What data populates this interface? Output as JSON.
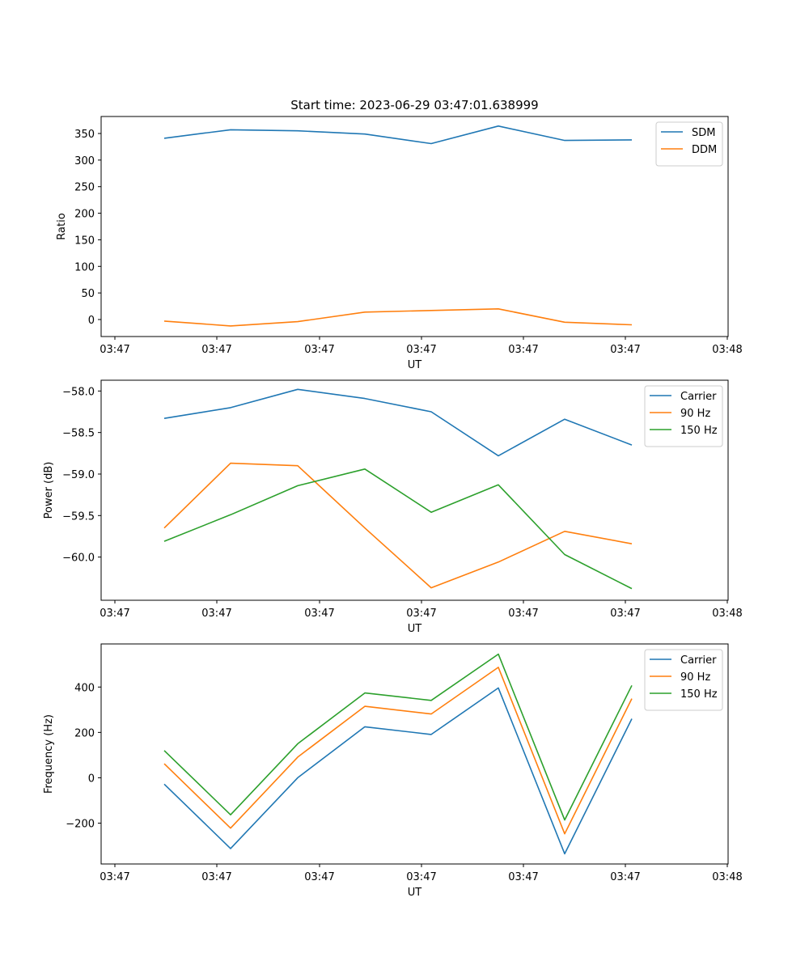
{
  "figure": {
    "title": "Start time: 2023-06-29 03:47:01.638999"
  },
  "colors": {
    "blue": "#1f77b4",
    "orange": "#ff7f0e",
    "green": "#2ca02c"
  },
  "chart_data": [
    {
      "type": "line",
      "title": "Start time: 2023-06-29 03:47:01.638999",
      "xlabel": "UT",
      "ylabel": "Ratio",
      "x_ticks": [
        "03:47",
        "03:47",
        "03:47",
        "03:47",
        "03:47",
        "03:47",
        "03:48"
      ],
      "ylim": [
        -32,
        382
      ],
      "y_ticks": [
        0,
        50,
        100,
        150,
        200,
        250,
        300,
        350
      ],
      "y_tick_labels": [
        "0",
        "50",
        "100",
        "150",
        "200",
        "250",
        "300",
        "350"
      ],
      "legend": "top-right",
      "series": [
        {
          "name": "SDM",
          "color": "#1f77b4",
          "values": [
            341,
            357,
            355,
            349,
            331,
            364,
            337,
            338
          ]
        },
        {
          "name": "DDM",
          "color": "#ff7f0e",
          "values": [
            -3,
            -12,
            -4,
            14,
            17,
            20,
            -5,
            -10
          ]
        }
      ]
    },
    {
      "type": "line",
      "title": "",
      "xlabel": "UT",
      "ylabel": "Power (dB)",
      "x_ticks": [
        "03:47",
        "03:47",
        "03:47",
        "03:47",
        "03:47",
        "03:47",
        "03:48"
      ],
      "ylim": [
        -60.52,
        -57.87
      ],
      "y_ticks": [
        -60.0,
        -59.5,
        -59.0,
        -58.5,
        -58.0
      ],
      "y_tick_labels": [
        "−60.0",
        "−59.5",
        "−59.0",
        "−58.5",
        "−58.0"
      ],
      "legend": "top-right",
      "series": [
        {
          "name": "Carrier",
          "color": "#1f77b4",
          "values": [
            -58.33,
            -58.2,
            -57.98,
            -58.09,
            -58.25,
            -58.78,
            -58.34,
            -58.65
          ]
        },
        {
          "name": "90 Hz",
          "color": "#ff7f0e",
          "values": [
            -59.65,
            -58.87,
            -58.9,
            -59.65,
            -60.37,
            -60.06,
            -59.69,
            -59.84
          ]
        },
        {
          "name": "150 Hz",
          "color": "#2ca02c",
          "values": [
            -59.81,
            -59.49,
            -59.14,
            -58.94,
            -59.46,
            -59.13,
            -59.97,
            -60.38
          ]
        }
      ]
    },
    {
      "type": "line",
      "title": "",
      "xlabel": "UT",
      "ylabel": "Frequency (Hz)",
      "x_ticks": [
        "03:47",
        "03:47",
        "03:47",
        "03:47",
        "03:47",
        "03:47",
        "03:48"
      ],
      "ylim": [
        -380,
        590
      ],
      "y_ticks": [
        -200,
        0,
        200,
        400
      ],
      "y_tick_labels": [
        "−200",
        "0",
        "200",
        "400"
      ],
      "legend": "top-right",
      "series": [
        {
          "name": "Carrier",
          "color": "#1f77b4",
          "values": [
            -28,
            -312,
            0,
            225,
            191,
            396,
            -335,
            260
          ]
        },
        {
          "name": "90 Hz",
          "color": "#ff7f0e",
          "values": [
            62,
            -222,
            91,
            315,
            281,
            487,
            -247,
            349
          ]
        },
        {
          "name": "150 Hz",
          "color": "#2ca02c",
          "values": [
            120,
            -163,
            150,
            374,
            341,
            545,
            -186,
            407
          ]
        }
      ]
    }
  ]
}
